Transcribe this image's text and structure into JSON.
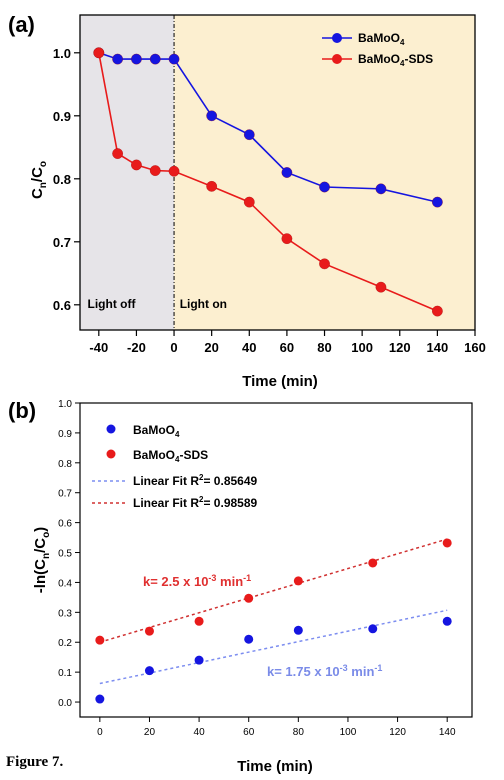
{
  "figure_caption": "Figure 7.",
  "chart_data": [
    {
      "type": "line",
      "panel_label": "(a)",
      "xlabel": "Time (min)",
      "ylabel_main": "C",
      "ylabel_sub1": "n",
      "ylabel_mid": "/C",
      "ylabel_sub2": "o",
      "xlim": [
        -50,
        160
      ],
      "ylim": [
        0.56,
        1.06
      ],
      "xticks": [
        -40,
        -20,
        0,
        20,
        40,
        60,
        80,
        100,
        120,
        140,
        160
      ],
      "yticks": [
        0.6,
        0.7,
        0.8,
        0.9,
        1.0
      ],
      "ytick_labels": [
        "0.6",
        "0.7",
        "0.8",
        "0.9",
        "1.0"
      ],
      "dark_region": {
        "x_from": -50,
        "x_to": 0,
        "label": "Light off",
        "color": "#e6e4e8"
      },
      "light_region": {
        "x_from": 0,
        "x_to": 160,
        "label": "Light on",
        "color": "#fcefd0"
      },
      "series": [
        {
          "name": "BaMoO",
          "name_sub": "4",
          "name_suffix": "",
          "color": "#1515e0",
          "x": [
            -40,
            -30,
            -20,
            -10,
            0,
            20,
            40,
            60,
            80,
            110,
            140
          ],
          "values": [
            1.0,
            0.99,
            0.99,
            0.99,
            0.99,
            0.9,
            0.87,
            0.81,
            0.787,
            0.784,
            0.763
          ]
        },
        {
          "name": "BaMoO",
          "name_sub": "4",
          "name_suffix": "-SDS",
          "color": "#e81b1b",
          "x": [
            -40,
            -30,
            -20,
            -10,
            0,
            20,
            40,
            60,
            80,
            110,
            140
          ],
          "values": [
            1.0,
            0.84,
            0.822,
            0.813,
            0.812,
            0.788,
            0.763,
            0.705,
            0.665,
            0.628,
            0.59
          ]
        }
      ],
      "legend_position": "top-right"
    },
    {
      "type": "scatter",
      "panel_label": "(b)",
      "xlabel": "Time (min)",
      "ylabel": "-ln(C",
      "ylabel_sub1": "n",
      "ylabel_mid": "/C",
      "ylabel_sub2": "o",
      "ylabel_end": ")",
      "xlim": [
        -8,
        150
      ],
      "ylim": [
        -0.05,
        1.0
      ],
      "xticks": [
        0,
        20,
        40,
        60,
        80,
        100,
        120,
        140
      ],
      "yticks": [
        0.0,
        0.1,
        0.2,
        0.3,
        0.4,
        0.5,
        0.6,
        0.7,
        0.8,
        0.9,
        1.0
      ],
      "ytick_labels": [
        "0.0",
        "0.1",
        "0.2",
        "0.3",
        "0.4",
        "0.5",
        "0.6",
        "0.7",
        "0.8",
        "0.9",
        "1.0"
      ],
      "series": [
        {
          "name": "BaMoO",
          "name_sub": "4",
          "name_suffix": "",
          "color": "#1515e0",
          "x": [
            0,
            20,
            40,
            60,
            80,
            110,
            140
          ],
          "values": [
            0.01,
            0.105,
            0.14,
            0.21,
            0.24,
            0.245,
            0.27
          ],
          "fit": {
            "label_pre": "Linear Fit R",
            "label_sup": "2",
            "label_post": "= 0.85649",
            "x": [
              0,
              140
            ],
            "values": [
              0.062,
              0.307
            ],
            "color": "#7c8df0"
          },
          "annotation": {
            "pre": "k= 1.75 x 10",
            "sup": "-3",
            "mid": " min",
            "sup2": "-1",
            "color": "#7a8be8"
          }
        },
        {
          "name": "BaMoO",
          "name_sub": "4",
          "name_suffix": "-SDS",
          "color": "#e81b1b",
          "x": [
            0,
            20,
            40,
            60,
            80,
            110,
            140
          ],
          "values": [
            0.207,
            0.237,
            0.27,
            0.347,
            0.405,
            0.465,
            0.532
          ],
          "fit": {
            "label_pre": "Linear Fit R",
            "label_sup": "2",
            "label_post": "= 0.98589",
            "x": [
              0,
              140
            ],
            "values": [
              0.2,
              0.545
            ],
            "color": "#d03030"
          },
          "annotation": {
            "pre": "k= 2.5 x 10",
            "sup": "-3",
            "mid": " min",
            "sup2": "-1",
            "color": "#e03030"
          }
        }
      ],
      "legend_position": "top-left"
    }
  ]
}
